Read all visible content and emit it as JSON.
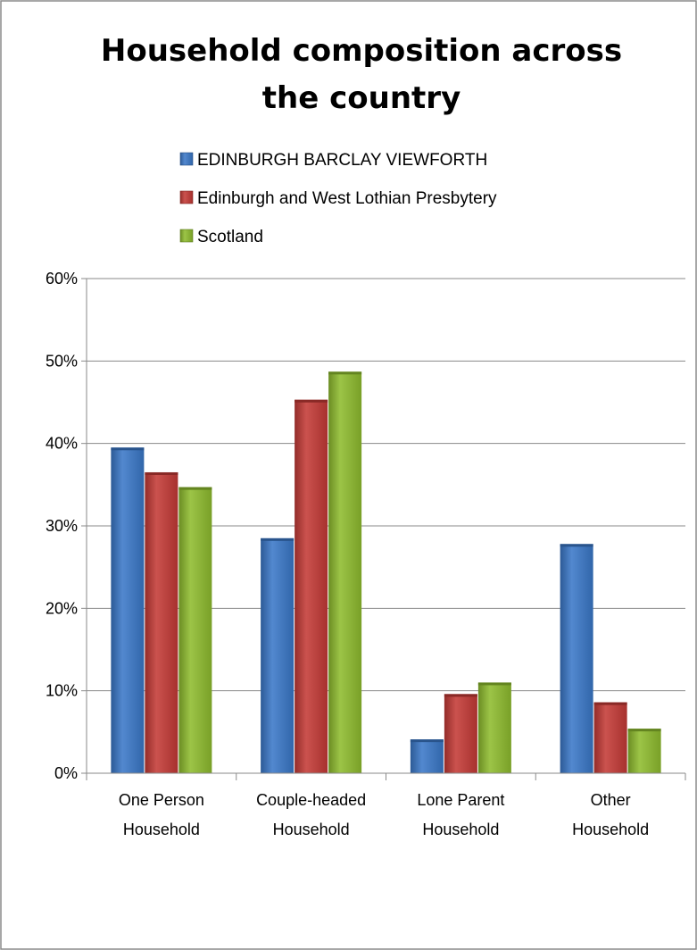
{
  "chart_data": {
    "type": "bar",
    "title": "Household composition across the country",
    "title_lines": [
      "Household composition across",
      "the country"
    ],
    "categories": [
      [
        "One Person",
        "Household"
      ],
      [
        "Couple-headed",
        "Household"
      ],
      [
        "Lone Parent",
        "Household"
      ],
      [
        "Other",
        "Household"
      ]
    ],
    "series": [
      {
        "name": "EDINBURGH BARCLAY VIEWFORTH",
        "color": "#3a78c8",
        "values": [
          0.395,
          0.285,
          0.041,
          0.278
        ]
      },
      {
        "name": "Edinburgh and West Lothian Presbytery",
        "color": "#c43a36",
        "values": [
          0.365,
          0.453,
          0.096,
          0.086
        ]
      },
      {
        "name": "Scotland",
        "color": "#8ebc2e",
        "values": [
          0.347,
          0.487,
          0.11,
          0.054
        ]
      }
    ],
    "ylim": [
      0,
      0.6
    ],
    "yticks": [
      "0%",
      "10%",
      "20%",
      "30%",
      "40%",
      "50%",
      "60%"
    ],
    "grid": true,
    "legend_position": "top-center"
  }
}
